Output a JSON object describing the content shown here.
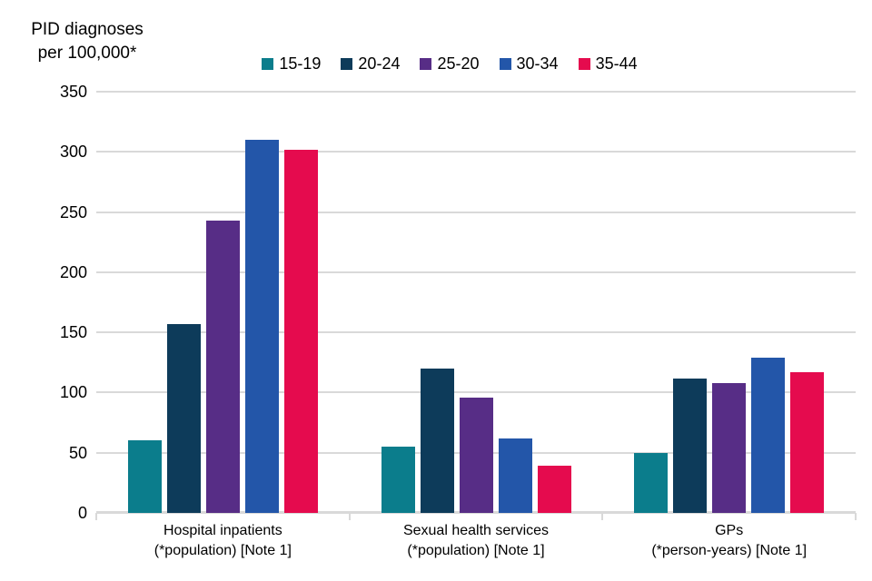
{
  "title": {
    "line1": "PID diagnoses",
    "line2": "per 100,000*"
  },
  "chart_data": {
    "type": "bar",
    "title": "PID diagnoses per 100,000*",
    "xlabel": "",
    "ylabel": "PID diagnoses per 100,000*",
    "ylim": [
      0,
      350
    ],
    "yticks": [
      0,
      50,
      100,
      150,
      200,
      250,
      300,
      350
    ],
    "grid": true,
    "legend_position": "top",
    "categories": [
      [
        "Hospital inpatients",
        "(*population) [Note 1]"
      ],
      [
        "Sexual health services",
        "(*population) [Note 1]"
      ],
      [
        "GPs",
        "(*person-years) [Note 1]"
      ]
    ],
    "series": [
      {
        "name": "15-19",
        "color": "#0b7d8c",
        "values": [
          60,
          55,
          50
        ]
      },
      {
        "name": "20-24",
        "color": "#0d3b5a",
        "values": [
          157,
          120,
          112
        ]
      },
      {
        "name": "25-20",
        "color": "#572d86",
        "values": [
          243,
          96,
          108
        ]
      },
      {
        "name": "30-34",
        "color": "#2356a9",
        "values": [
          310,
          62,
          129
        ]
      },
      {
        "name": "35-44",
        "color": "#e50b4e",
        "values": [
          302,
          39,
          117
        ]
      }
    ],
    "colors": {
      "gridline": "#d9d9d9",
      "axis": "#d9d9d9",
      "text": "#000000"
    }
  }
}
